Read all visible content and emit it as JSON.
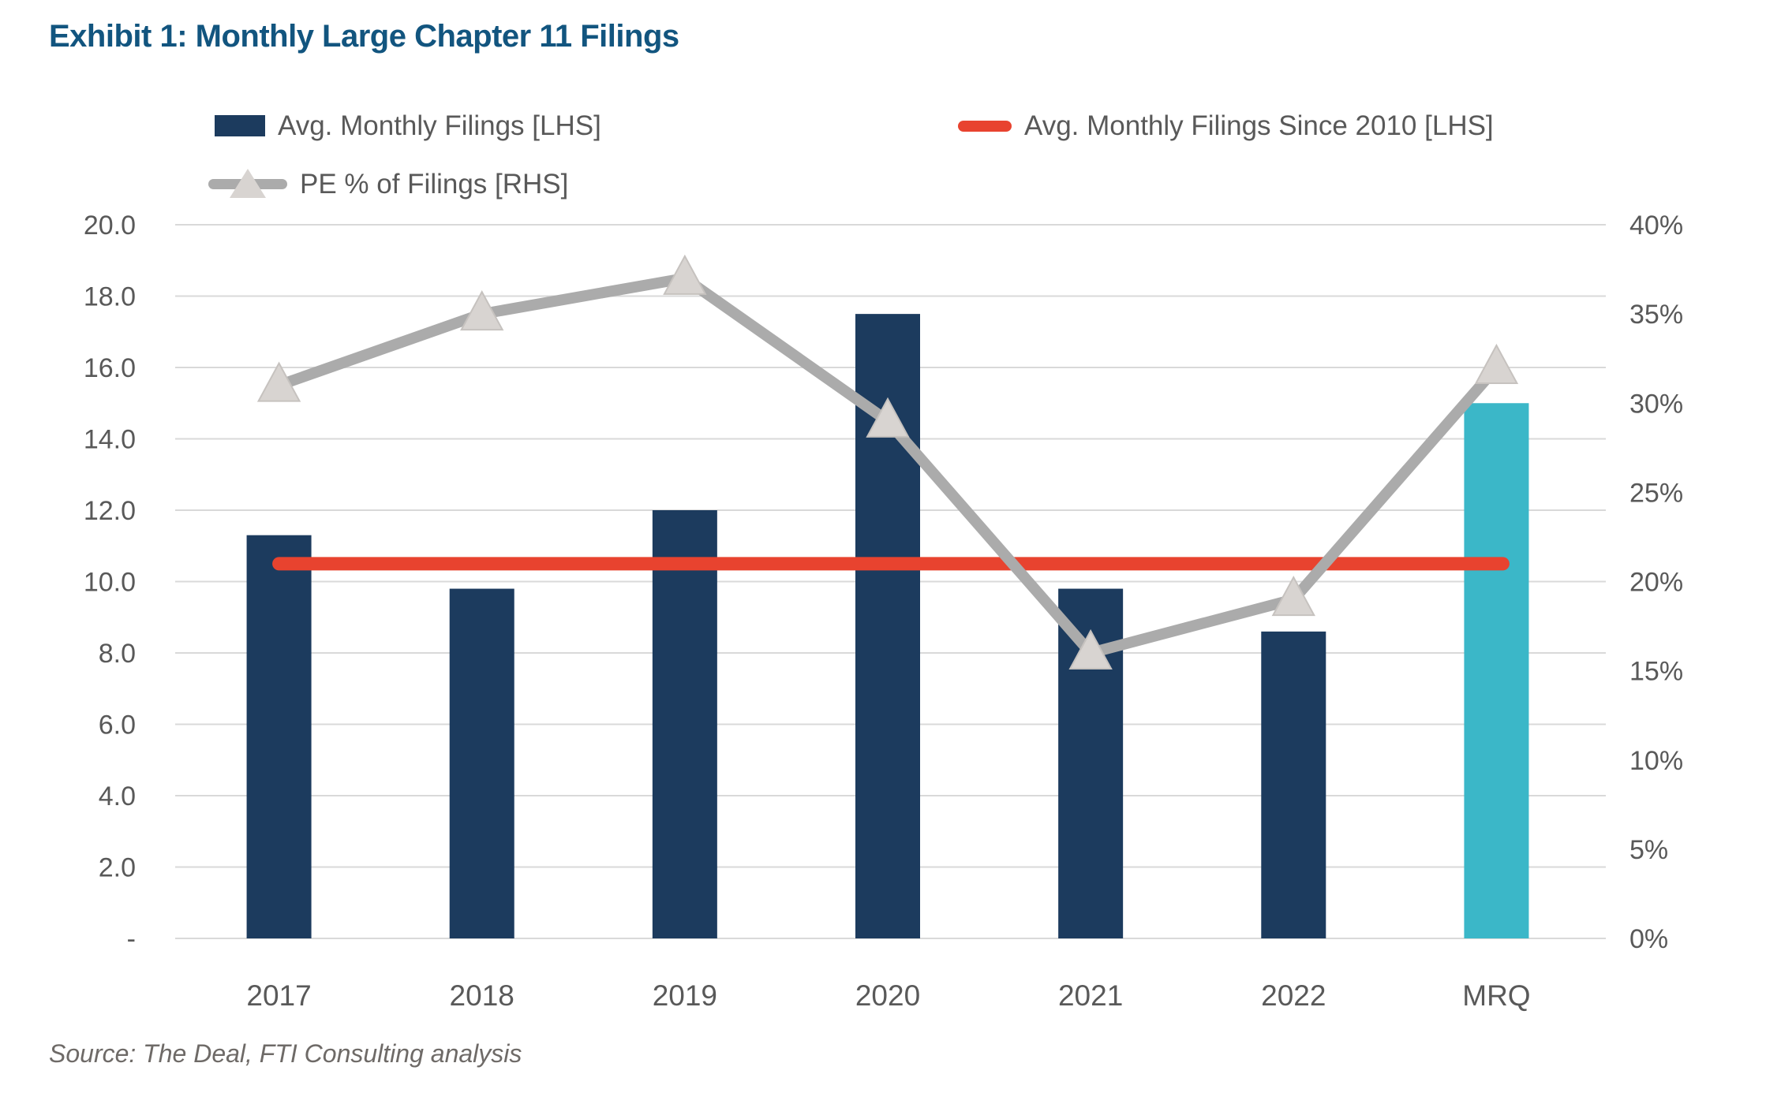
{
  "header": {
    "title": "Exhibit 1: Monthly Large Chapter 11 Filings"
  },
  "legend": {
    "items": [
      {
        "label": "Avg. Monthly Filings [LHS]",
        "swatch": "navy-bar-swatch",
        "color": "#1C3B5E"
      },
      {
        "label": "Avg. Monthly Filings Since 2010 [LHS]",
        "swatch": "red-line-swatch",
        "color": "#E8432F"
      },
      {
        "label": "PE % of Filings [RHS]",
        "swatch": "gray-line-triangle-swatch",
        "color": "#ABABAB"
      }
    ]
  },
  "chart_data": {
    "type": "combo",
    "title": "Exhibit 1: Monthly Large Chapter 11 Filings",
    "categories": [
      "2017",
      "2018",
      "2019",
      "2020",
      "2021",
      "2022",
      "MRQ"
    ],
    "series": [
      {
        "name": "Avg. Monthly Filings [LHS]",
        "type": "bar",
        "axis": "left",
        "values": [
          11.3,
          9.8,
          12.0,
          17.5,
          9.8,
          8.6,
          15.0
        ],
        "colors": [
          "#1C3B5E",
          "#1C3B5E",
          "#1C3B5E",
          "#1C3B5E",
          "#1C3B5E",
          "#1C3B5E",
          "#3BB7C8"
        ]
      },
      {
        "name": "Avg. Monthly Filings Since 2010 [LHS]",
        "type": "line",
        "axis": "left",
        "values": [
          10.5,
          10.5,
          10.5,
          10.5,
          10.5,
          10.5,
          10.5
        ],
        "color": "#E8432F"
      },
      {
        "name": "PE % of Filings [RHS]",
        "type": "line",
        "axis": "right",
        "values": [
          31,
          35,
          37,
          29,
          16,
          19,
          32
        ],
        "color": "#ABABAB",
        "marker": "triangle",
        "marker_color": "#D8D4D1",
        "marker_edge": "#C6C2BF"
      }
    ],
    "left_axis": {
      "min": 0,
      "max": 20,
      "tick_step": 2,
      "tick_labels": [
        "-",
        "2.0",
        "4.0",
        "6.0",
        "8.0",
        "10.0",
        "12.0",
        "14.0",
        "16.0",
        "18.0",
        "20.0"
      ]
    },
    "right_axis": {
      "min": 0,
      "max": 40,
      "tick_step": 5,
      "tick_labels": [
        "0%",
        "5%",
        "10%",
        "15%",
        "20%",
        "25%",
        "30%",
        "35%",
        "40%"
      ]
    },
    "grid": "horizontal",
    "legend_position": "top"
  },
  "footer": {
    "source": "Source: The Deal, FTI Consulting analysis"
  },
  "colors": {
    "title": "#12557F",
    "navy": "#1C3B5E",
    "teal": "#3BB7C8",
    "red": "#E8432F",
    "gray_line": "#ABABAB",
    "marker_fill": "#D8D4D1",
    "marker_edge": "#C6C2BF",
    "gridline": "#D9D9D9",
    "axis_text": "#595959",
    "source_text": "#6E6A67"
  }
}
